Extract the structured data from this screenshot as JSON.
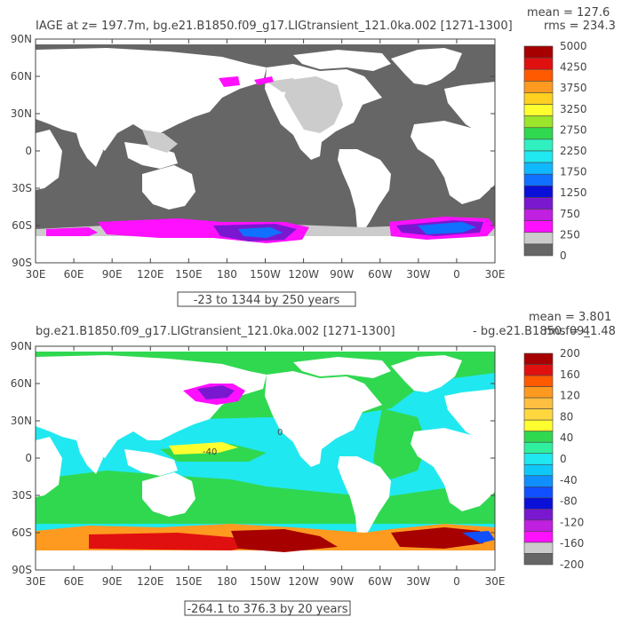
{
  "chart_data": [
    {
      "type": "heatmap",
      "title": "IAGE at z= 197.7m, bg.e21.B1850.f09_g17.LIGtransient_121.0ka.002 [1271-1300]",
      "stats": {
        "mean": "mean = 127.6",
        "rms": "rms = 234.3"
      },
      "x_ticks": [
        "30E",
        "60E",
        "90E",
        "120E",
        "150E",
        "180",
        "150W",
        "120W",
        "90W",
        "60W",
        "30W",
        "0",
        "30E"
      ],
      "y_ticks": [
        "90N",
        "60N",
        "30N",
        "0",
        "30S",
        "60S",
        "90S"
      ],
      "xlim": [
        30,
        390
      ],
      "ylim": [
        -90,
        90
      ],
      "range_label": "-23 to 1344 by 250 years",
      "colorbar": {
        "labels": [
          "5000",
          "4250",
          "3750",
          "3250",
          "2750",
          "2250",
          "1750",
          "1250",
          "750",
          "250",
          "0"
        ],
        "colors": [
          "#a60000",
          "#e01010",
          "#ff5a00",
          "#ff9a20",
          "#ffd020",
          "#ffff30",
          "#9be52a",
          "#30d850",
          "#30f0c0",
          "#20e8f0",
          "#10b8ff",
          "#1070ff",
          "#0a10d8",
          "#7a18d0",
          "#c020e0",
          "#ff10ff",
          "#cccccc",
          "#666666"
        ]
      },
      "features": {
        "land": "#ffffff",
        "ocean_background": "#666666",
        "light_patch": "#cccccc",
        "magenta_south": "#ff10ff"
      }
    },
    {
      "type": "heatmap",
      "title": "bg.e21.B1850.f09_g17.LIGtransient_121.0ka.002 [1271-1300]",
      "title_right": "- bg.e21.B1850.f09_",
      "stats": {
        "mean": "mean = 3.801",
        "rms": "rms = 41.48"
      },
      "x_ticks": [
        "30E",
        "60E",
        "90E",
        "120E",
        "150E",
        "180",
        "150W",
        "120W",
        "90W",
        "60W",
        "30W",
        "0",
        "30E"
      ],
      "y_ticks": [
        "90N",
        "60N",
        "30N",
        "0",
        "30S",
        "60S",
        "90S"
      ],
      "xlim": [
        30,
        390
      ],
      "ylim": [
        -90,
        90
      ],
      "range_label": "-264.1 to 376.3 by 20 years",
      "contour_labels": [
        "0",
        "-40"
      ],
      "colorbar": {
        "labels": [
          "200",
          "160",
          "120",
          "80",
          "40",
          "0",
          "-40",
          "-80",
          "-120",
          "-160",
          "-200"
        ],
        "colors": [
          "#a60000",
          "#e01010",
          "#ff5a00",
          "#ff9a20",
          "#ffbf40",
          "#ffd840",
          "#ffff30",
          "#30d850",
          "#30f0a0",
          "#20e8f0",
          "#10c8f8",
          "#1090ff",
          "#1050ff",
          "#0a10d8",
          "#7a18d0",
          "#c020e0",
          "#ff10ff",
          "#cccccc",
          "#666666"
        ]
      },
      "features": {
        "land": "#ffffff",
        "ocean_background": "#20e8f0",
        "green_regions": "#30d850",
        "southern_red": "#a60000"
      }
    }
  ]
}
